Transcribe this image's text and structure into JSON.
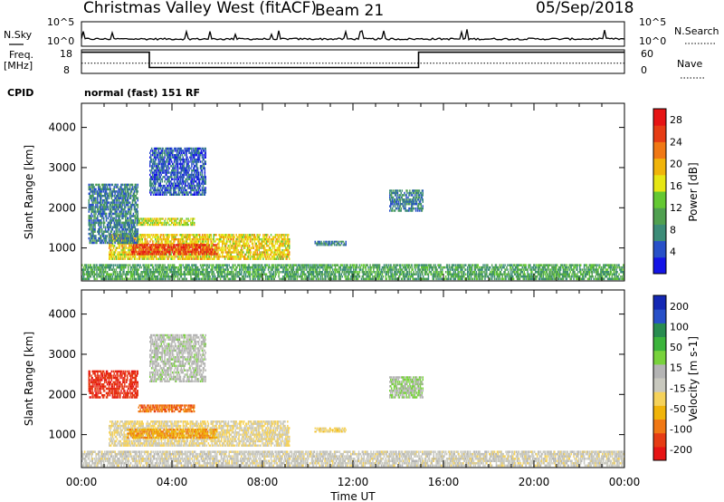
{
  "header": {
    "station": "Christmas Valley West (fitACF)",
    "beam": "Beam 21",
    "date": "05/Sep/2018"
  },
  "strip1": {
    "left_label": "N.Sky",
    "left_ticks": [
      "10^5",
      "10^0"
    ],
    "right_ticks": [
      "10^5",
      "10^0"
    ],
    "right_label": "N.Search"
  },
  "strip2": {
    "left_label_1": "Freq.",
    "left_label_2": "[MHz]",
    "left_ticks": [
      "18",
      "8"
    ],
    "right_ticks": [
      "60",
      "0"
    ],
    "right_label": "Nave"
  },
  "cpid": {
    "label": "CPID",
    "value": "normal (fast) 151 RF"
  },
  "x_axis": {
    "label": "Time UT",
    "ticks": [
      "00:00",
      "04:00",
      "08:00",
      "12:00",
      "16:00",
      "20:00",
      "00:00"
    ]
  },
  "colors": {
    "power_scale": [
      "#1414e6",
      "#2850c8",
      "#3c8c78",
      "#50a050",
      "#64c832",
      "#e6e614",
      "#f0b40a",
      "#f07814",
      "#e63c14",
      "#e61414"
    ],
    "velocity_scale": [
      "#e61414",
      "#e63c14",
      "#f07814",
      "#f0b40a",
      "#f5d25a",
      "#c8c8be",
      "#b4b4b4",
      "#78d23c",
      "#3cb43c",
      "#288c50",
      "#2850c8",
      "#1428b4"
    ]
  },
  "chart_data": [
    {
      "type": "line",
      "title": "N.Sky / N.Search",
      "x_range_hours": [
        0,
        24
      ],
      "y_scale": "log",
      "ylim": [
        1,
        100000
      ],
      "note": "nearly flat low-level sky noise with sporadic spikes"
    },
    {
      "type": "line",
      "title": "Freq. / Nave",
      "x_range_hours": [
        0,
        24
      ],
      "series": [
        {
          "name": "Freq.",
          "segments": [
            {
              "from": 0,
              "to": 3.0,
              "value": 17
            },
            {
              "from": 3.0,
              "to": 14.9,
              "value": 10.5
            },
            {
              "from": 14.9,
              "to": 24,
              "value": 17
            }
          ]
        },
        {
          "name": "Nave",
          "value": 26
        }
      ],
      "ylim_left": [
        8,
        18
      ],
      "ylim_right": [
        0,
        60
      ]
    },
    {
      "type": "heatmap",
      "xlabel": "Time UT",
      "ylabel": "Slant Range [km]",
      "x_range_hours": [
        0,
        24
      ],
      "ylim": [
        180,
        4600
      ],
      "yticks": [
        1000,
        2000,
        3000,
        4000
      ],
      "colorbar": {
        "label": "Power [dB]",
        "ticks": [
          4,
          8,
          12,
          16,
          20,
          24,
          28
        ],
        "range": [
          0,
          30
        ]
      },
      "regions": [
        {
          "t0": 1.2,
          "t1": 9.2,
          "r0": 700,
          "r1": 1350,
          "level": 18
        },
        {
          "t0": 2.2,
          "t1": 6.0,
          "r0": 820,
          "r1": 1100,
          "level": 26
        },
        {
          "t0": 0.3,
          "t1": 2.5,
          "r0": 1100,
          "r1": 2600,
          "level": 7
        },
        {
          "t0": 2.5,
          "t1": 5.0,
          "r0": 1550,
          "r1": 1750,
          "level": 16
        },
        {
          "t0": 3.0,
          "t1": 5.5,
          "r0": 2300,
          "r1": 3500,
          "level": 5
        },
        {
          "t0": 10.3,
          "t1": 11.7,
          "r0": 1050,
          "r1": 1180,
          "level": 7
        },
        {
          "t0": 13.6,
          "t1": 15.1,
          "r0": 1900,
          "r1": 2450,
          "level": 7
        },
        {
          "t0": 0.0,
          "t1": 24.0,
          "r0": 200,
          "r1": 600,
          "level": 10
        }
      ]
    },
    {
      "type": "heatmap",
      "xlabel": "Time UT",
      "ylabel": "Slant Range [km]",
      "x_range_hours": [
        0,
        24
      ],
      "ylim": [
        180,
        4600
      ],
      "yticks": [
        1000,
        2000,
        3000,
        4000
      ],
      "colorbar": {
        "label": "Velocity [m s-1]",
        "ticks": [
          200,
          100,
          50,
          15,
          -15,
          -50,
          -100,
          -200
        ],
        "range": [
          -250,
          250
        ]
      },
      "regions": [
        {
          "t0": 1.2,
          "t1": 9.2,
          "r0": 700,
          "r1": 1350,
          "level": -40
        },
        {
          "t0": 2.0,
          "t1": 6.0,
          "r0": 900,
          "r1": 1150,
          "level": -120
        },
        {
          "t0": 0.3,
          "t1": 2.5,
          "r0": 1900,
          "r1": 2600,
          "level": -200
        },
        {
          "t0": 2.5,
          "t1": 5.0,
          "r0": 1550,
          "r1": 1750,
          "level": -150
        },
        {
          "t0": 3.0,
          "t1": 5.5,
          "r0": 2300,
          "r1": 3500,
          "level": 20
        },
        {
          "t0": 10.3,
          "t1": 11.7,
          "r0": 1050,
          "r1": 1180,
          "level": -60
        },
        {
          "t0": 13.6,
          "t1": 15.1,
          "r0": 1900,
          "r1": 2450,
          "level": 40
        },
        {
          "t0": 0.0,
          "t1": 24.0,
          "r0": 200,
          "r1": 600,
          "level": -20
        }
      ]
    }
  ]
}
